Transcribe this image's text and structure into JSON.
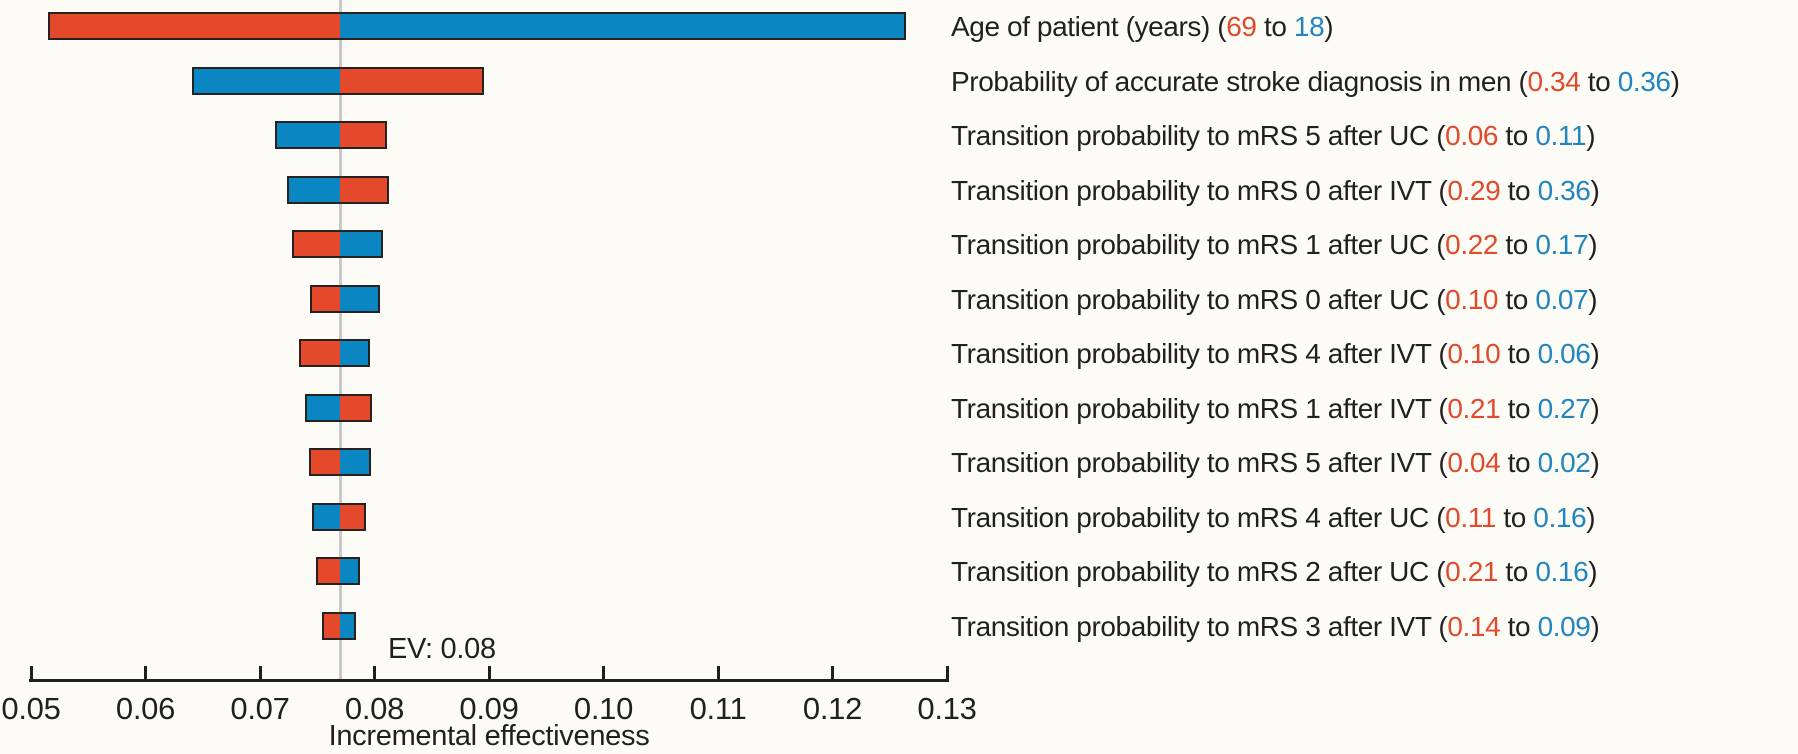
{
  "chart_data": {
    "type": "bar",
    "subtype": "tornado-diagram",
    "xlabel": "Incremental effectiveness",
    "xlim": [
      0.05,
      0.13
    ],
    "xticks": [
      {
        "value": 0.05,
        "label": "0.05"
      },
      {
        "value": 0.06,
        "label": "0.06"
      },
      {
        "value": 0.07,
        "label": "0.07"
      },
      {
        "value": 0.08,
        "label": "0.08"
      },
      {
        "value": 0.09,
        "label": "0.09"
      },
      {
        "value": 0.1,
        "label": "0.10"
      },
      {
        "value": 0.11,
        "label": "0.11"
      },
      {
        "value": 0.12,
        "label": "0.12"
      },
      {
        "value": 0.13,
        "label": "0.13"
      }
    ],
    "ev": {
      "label": "EV: 0.08",
      "value": 0.077
    },
    "grid": "off",
    "legend": "none",
    "colors": {
      "bar_red": "#e4492b",
      "bar_blue": "#0a86c2",
      "text_red": "#e04b2e",
      "text_blue": "#2385bf",
      "axis": "#231f20",
      "ev_line": "#c9c9c9",
      "bar_border": "#272220",
      "background": "#fcfbf5"
    },
    "label_format": {
      "open": " (",
      "separator": " to ",
      "close": ")"
    },
    "rows": [
      {
        "label": "Age of patient (years)",
        "low_value": "69",
        "high_value": "18",
        "bar_from": 0.0515,
        "bar_to": 0.1264,
        "left_color": "red"
      },
      {
        "label": "Probability of accurate stroke diagnosis in men",
        "low_value": "0.34",
        "high_value": "0.36",
        "bar_from": 0.0641,
        "bar_to": 0.0896,
        "left_color": "blue"
      },
      {
        "label": "Transition probability to mRS 5 after UC",
        "low_value": "0.06",
        "high_value": "0.11",
        "bar_from": 0.0713,
        "bar_to": 0.0811,
        "left_color": "blue"
      },
      {
        "label": "Transition probability to mRS 0 after IVT",
        "low_value": "0.29",
        "high_value": "0.36",
        "bar_from": 0.0724,
        "bar_to": 0.0813,
        "left_color": "blue"
      },
      {
        "label": "Transition probability to mRS 1 after UC",
        "low_value": "0.22",
        "high_value": "0.17",
        "bar_from": 0.0728,
        "bar_to": 0.0807,
        "left_color": "red"
      },
      {
        "label": "Transition probability to mRS 0 after UC",
        "low_value": "0.10",
        "high_value": "0.07",
        "bar_from": 0.0744,
        "bar_to": 0.0805,
        "left_color": "red"
      },
      {
        "label": "Transition probability to mRS 4 after IVT",
        "low_value": "0.10",
        "high_value": "0.06",
        "bar_from": 0.0734,
        "bar_to": 0.0796,
        "left_color": "red"
      },
      {
        "label": "Transition probability to mRS 1 after IVT",
        "low_value": "0.21",
        "high_value": "0.27",
        "bar_from": 0.0739,
        "bar_to": 0.0798,
        "left_color": "blue"
      },
      {
        "label": "Transition probability to mRS 5 after IVT",
        "low_value": "0.04",
        "high_value": "0.02",
        "bar_from": 0.0743,
        "bar_to": 0.0797,
        "left_color": "red"
      },
      {
        "label": "Transition probability to mRS 4 after UC",
        "low_value": "0.11",
        "high_value": "0.16",
        "bar_from": 0.0745,
        "bar_to": 0.0793,
        "left_color": "blue"
      },
      {
        "label": "Transition probability to mRS 2 after UC",
        "low_value": "0.21",
        "high_value": "0.16",
        "bar_from": 0.0749,
        "bar_to": 0.0787,
        "left_color": "red"
      },
      {
        "label": "Transition probability to mRS 3 after IVT",
        "low_value": "0.14",
        "high_value": "0.09",
        "bar_from": 0.0754,
        "bar_to": 0.0784,
        "left_color": "red"
      }
    ]
  }
}
